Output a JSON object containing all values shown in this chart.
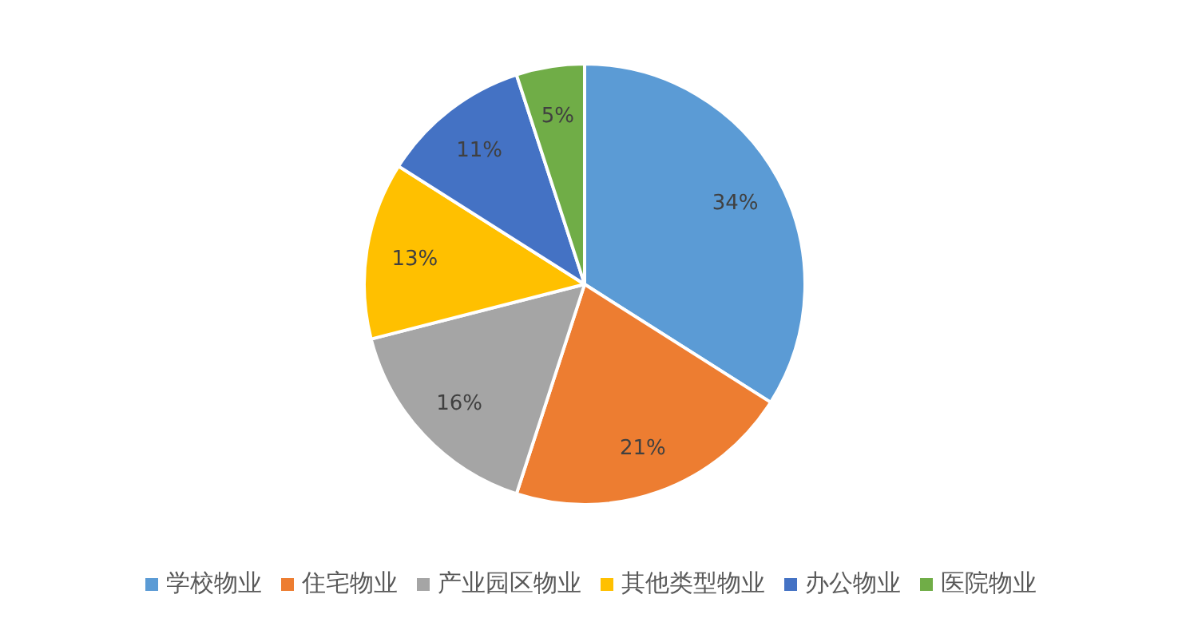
{
  "chart_data": {
    "type": "pie",
    "categories": [
      "学校物业",
      "住宅物业",
      "产业园区物业",
      "其他类型物业",
      "办公物业",
      "医院物业"
    ],
    "values": [
      34,
      21,
      16,
      13,
      11,
      5
    ],
    "value_labels": [
      "34%",
      "21%",
      "16%",
      "13%",
      "11%",
      "5%"
    ],
    "colors": [
      "#5b9bd5",
      "#ed7d31",
      "#a5a5a5",
      "#ffc000",
      "#4472c4",
      "#70ad47"
    ],
    "legend": "bottom"
  }
}
